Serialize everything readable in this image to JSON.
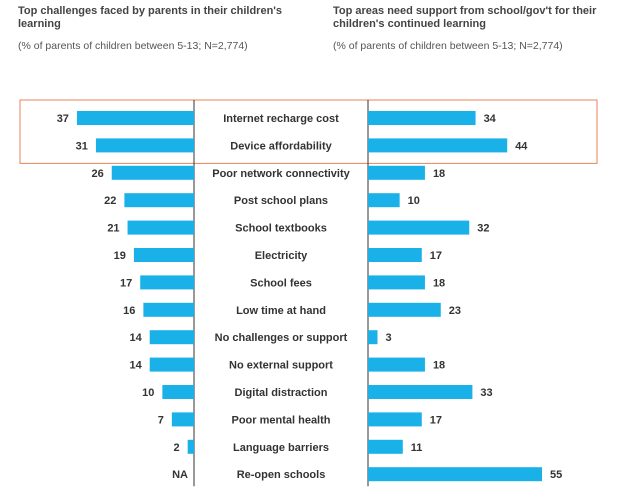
{
  "header": {
    "left_title": "Top challenges faced by parents in their children's learning",
    "left_subtitle": "(% of parents of children between 5-13; N=2,774)",
    "right_title": "Top areas need support from school/gov't for their children's continued learning",
    "right_subtitle": "(% of parents of children between 5-13; N=2,774)"
  },
  "colors": {
    "bar": "#1ab0e8",
    "highlight_box": "#e8855a",
    "divider": "#333333",
    "text": "#333333"
  },
  "chart_data": {
    "type": "bar",
    "orientation": "horizontal-butterfly",
    "xlim": [
      0,
      55
    ],
    "categories": [
      "Internet recharge cost",
      "Device affordability",
      "Poor network connectivity",
      "Post school plans",
      "School textbooks",
      "Electricity",
      "School fees",
      "Low time at hand",
      "No challenges or support",
      "No external support",
      "Digital distraction",
      "Poor mental health",
      "Language barriers",
      "Re-open schools"
    ],
    "series": [
      {
        "name": "Top challenges faced by parents in their children's learning",
        "side": "left",
        "values": [
          37,
          31,
          26,
          22,
          21,
          19,
          17,
          16,
          14,
          14,
          10,
          7,
          2,
          null
        ],
        "labels": [
          "37",
          "31",
          "26",
          "22",
          "21",
          "19",
          "17",
          "16",
          "14",
          "14",
          "10",
          "7",
          "2",
          "NA"
        ]
      },
      {
        "name": "Top areas need support from school/gov't for their children's continued learning",
        "side": "right",
        "values": [
          34,
          44,
          18,
          10,
          32,
          17,
          18,
          23,
          3,
          18,
          33,
          17,
          11,
          55
        ],
        "labels": [
          "34",
          "44",
          "18",
          "10",
          "32",
          "17",
          "18",
          "23",
          "3",
          "18",
          "33",
          "17",
          "11",
          "55"
        ]
      }
    ],
    "highlighted_categories": [
      "Internet recharge cost",
      "Device affordability"
    ]
  }
}
